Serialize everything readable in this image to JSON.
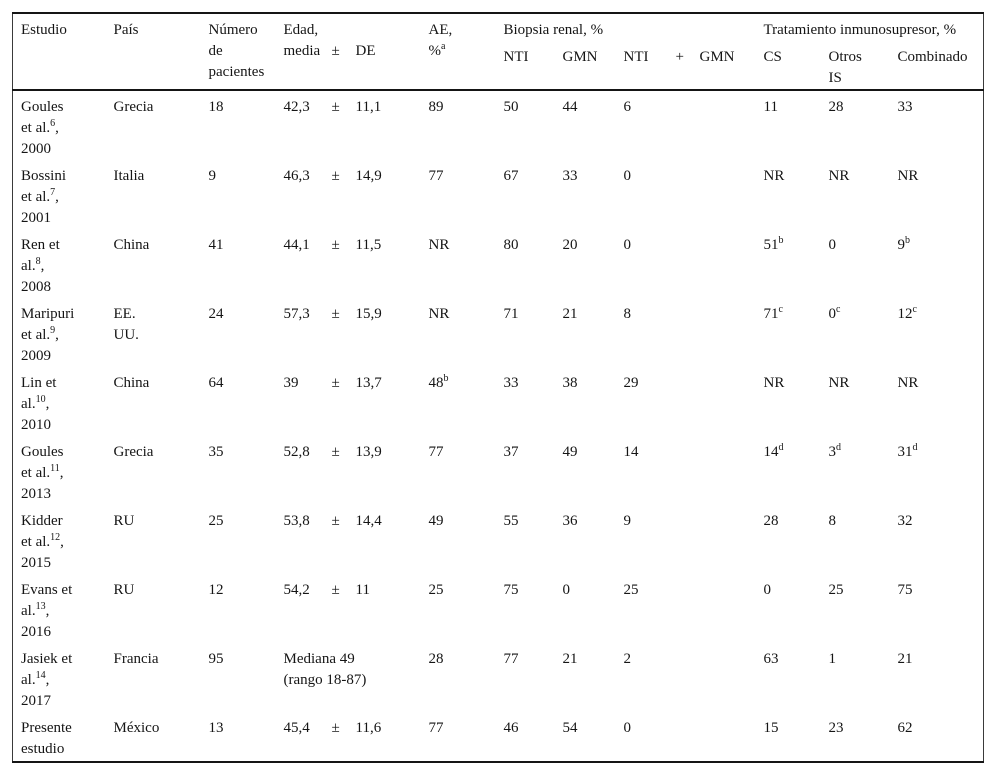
{
  "header": {
    "estudio": "Estudio",
    "pais": "País",
    "numero": "Número de pacientes",
    "edad_line1": "Edad,",
    "edad_media": "media",
    "edad_pm": "±",
    "edad_de": "DE",
    "ae_line1": "AE,",
    "ae_line2": "%",
    "ae_sup": "a",
    "biopsia_group": "Biopsia renal, %",
    "nti": "NTI",
    "gmn": "GMN",
    "ntigmn_nti": "NTI",
    "ntigmn_plus": "+",
    "ntigmn_gmn": "GMN",
    "tratamiento_group": "Tratamiento inmunosupresor, %",
    "cs": "CS",
    "otros_line1": "Otros",
    "otros_line2": "IS",
    "combinado": "Combinado"
  },
  "rows": [
    {
      "estudio": [
        {
          "t": "Goules"
        },
        {
          "t": "et al.",
          "sup": "6",
          "after": ","
        },
        {
          "t": "2000"
        }
      ],
      "pais": [
        "Grecia"
      ],
      "numero": "18",
      "edad": {
        "media": "42,3",
        "pm": "±",
        "de": "11,1"
      },
      "ae": {
        "v": "89"
      },
      "nti": {
        "v": "50"
      },
      "gmn": {
        "v": "44"
      },
      "nti_gmn": {
        "v": "6"
      },
      "cs": {
        "v": "11"
      },
      "otros": {
        "v": "28"
      },
      "combinado": {
        "v": "33"
      }
    },
    {
      "estudio": [
        {
          "t": "Bossini"
        },
        {
          "t": "et al.",
          "sup": "7",
          "after": ","
        },
        {
          "t": "2001"
        }
      ],
      "pais": [
        "Italia"
      ],
      "numero": "9",
      "edad": {
        "media": "46,3",
        "pm": "±",
        "de": "14,9"
      },
      "ae": {
        "v": "77"
      },
      "nti": {
        "v": "67"
      },
      "gmn": {
        "v": "33"
      },
      "nti_gmn": {
        "v": "0"
      },
      "cs": {
        "v": "NR"
      },
      "otros": {
        "v": "NR"
      },
      "combinado": {
        "v": "NR"
      }
    },
    {
      "estudio": [
        {
          "t": "Ren et"
        },
        {
          "t": "al.",
          "sup": "8",
          "after": ","
        },
        {
          "t": "2008"
        }
      ],
      "pais": [
        "China"
      ],
      "numero": "41",
      "edad": {
        "media": "44,1",
        "pm": "±",
        "de": "11,5"
      },
      "ae": {
        "v": "NR"
      },
      "nti": {
        "v": "80"
      },
      "gmn": {
        "v": "20"
      },
      "nti_gmn": {
        "v": "0"
      },
      "cs": {
        "v": "51",
        "sup": "b"
      },
      "otros": {
        "v": "0"
      },
      "combinado": {
        "v": "9",
        "sup": "b"
      }
    },
    {
      "estudio": [
        {
          "t": "Maripuri"
        },
        {
          "t": "et al.",
          "sup": "9",
          "after": ","
        },
        {
          "t": "2009"
        }
      ],
      "pais": [
        "EE.",
        "UU."
      ],
      "numero": "24",
      "edad": {
        "media": "57,3",
        "pm": "±",
        "de": "15,9"
      },
      "ae": {
        "v": "NR"
      },
      "nti": {
        "v": "71"
      },
      "gmn": {
        "v": "21"
      },
      "nti_gmn": {
        "v": "8"
      },
      "cs": {
        "v": "71",
        "sup": "c"
      },
      "otros": {
        "v": "0",
        "sup": "c"
      },
      "combinado": {
        "v": "12",
        "sup": "c"
      }
    },
    {
      "estudio": [
        {
          "t": "Lin et"
        },
        {
          "t": "al.",
          "sup": "10",
          "after": ","
        },
        {
          "t": "2010"
        }
      ],
      "pais": [
        "China"
      ],
      "numero": "64",
      "edad": {
        "media": "39",
        "pm": "±",
        "de": "13,7"
      },
      "ae": {
        "v": "48",
        "sup": "b"
      },
      "nti": {
        "v": "33"
      },
      "gmn": {
        "v": "38"
      },
      "nti_gmn": {
        "v": "29"
      },
      "cs": {
        "v": "NR"
      },
      "otros": {
        "v": "NR"
      },
      "combinado": {
        "v": "NR"
      }
    },
    {
      "estudio": [
        {
          "t": "Goules"
        },
        {
          "t": "et al.",
          "sup": "11",
          "after": ","
        },
        {
          "t": "2013"
        }
      ],
      "pais": [
        "Grecia"
      ],
      "numero": "35",
      "edad": {
        "media": "52,8",
        "pm": "±",
        "de": "13,9"
      },
      "ae": {
        "v": "77"
      },
      "nti": {
        "v": "37"
      },
      "gmn": {
        "v": "49"
      },
      "nti_gmn": {
        "v": "14"
      },
      "cs": {
        "v": "14",
        "sup": "d"
      },
      "otros": {
        "v": "3",
        "sup": "d"
      },
      "combinado": {
        "v": "31",
        "sup": "d"
      }
    },
    {
      "estudio": [
        {
          "t": "Kidder"
        },
        {
          "t": "et al.",
          "sup": "12",
          "after": ","
        },
        {
          "t": "2015"
        }
      ],
      "pais": [
        "RU"
      ],
      "numero": "25",
      "edad": {
        "media": "53,8",
        "pm": "±",
        "de": "14,4"
      },
      "ae": {
        "v": "49"
      },
      "nti": {
        "v": "55"
      },
      "gmn": {
        "v": "36"
      },
      "nti_gmn": {
        "v": "9"
      },
      "cs": {
        "v": "28"
      },
      "otros": {
        "v": "8"
      },
      "combinado": {
        "v": "32"
      }
    },
    {
      "estudio": [
        {
          "t": "Evans et"
        },
        {
          "t": "al.",
          "sup": "13",
          "after": ","
        },
        {
          "t": "2016"
        }
      ],
      "pais": [
        "RU"
      ],
      "numero": "12",
      "edad": {
        "media": "54,2",
        "pm": "±",
        "de": "11"
      },
      "ae": {
        "v": "25"
      },
      "nti": {
        "v": "75"
      },
      "gmn": {
        "v": "0"
      },
      "nti_gmn": {
        "v": "25"
      },
      "cs": {
        "v": "0"
      },
      "otros": {
        "v": "25"
      },
      "combinado": {
        "v": "75"
      }
    },
    {
      "estudio": [
        {
          "t": "Jasiek et"
        },
        {
          "t": "al.",
          "sup": "14",
          "after": ","
        },
        {
          "t": "2017"
        }
      ],
      "pais": [
        "Francia"
      ],
      "numero": "95",
      "edad": {
        "lines": [
          "Mediana 49",
          "(rango 18-87)"
        ]
      },
      "ae": {
        "v": "28"
      },
      "nti": {
        "v": "77"
      },
      "gmn": {
        "v": "21"
      },
      "nti_gmn": {
        "v": "2"
      },
      "cs": {
        "v": "63"
      },
      "otros": {
        "v": "1"
      },
      "combinado": {
        "v": "21"
      }
    },
    {
      "estudio": [
        {
          "t": "Presente"
        },
        {
          "t": "estudio"
        }
      ],
      "pais": [
        "México"
      ],
      "numero": "13",
      "edad": {
        "media": "45,4",
        "pm": "±",
        "de": "11,6"
      },
      "ae": {
        "v": "77"
      },
      "nti": {
        "v": "46"
      },
      "gmn": {
        "v": "54"
      },
      "nti_gmn": {
        "v": "0"
      },
      "cs": {
        "v": "15"
      },
      "otros": {
        "v": "23"
      },
      "combinado": {
        "v": "62"
      }
    }
  ]
}
